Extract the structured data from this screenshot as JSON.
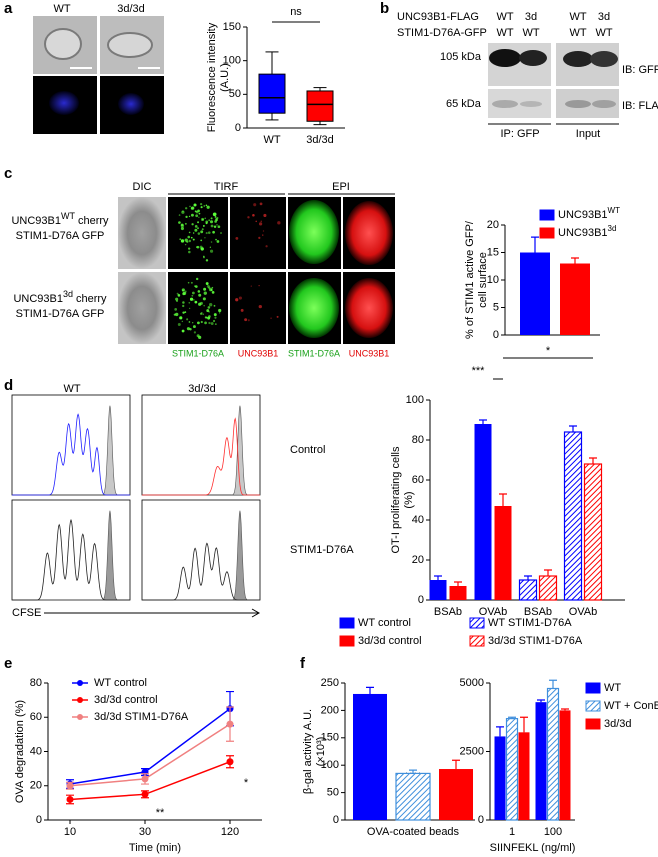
{
  "figure": {
    "panel_labels": [
      "a",
      "b",
      "c",
      "d",
      "e",
      "f"
    ],
    "a": {
      "image_labels": [
        "WT",
        "3d/3d"
      ]
    },
    "b": {
      "row_labels": [
        "UNC93B1-FLAG",
        "STIM1-D76A-GFP"
      ],
      "columns": [
        [
          "WT",
          "WT"
        ],
        [
          "3d",
          "WT"
        ],
        [
          "WT",
          "WT"
        ],
        [
          "3d",
          "WT"
        ]
      ],
      "markers": [
        "105 kDa",
        "65 kDa"
      ],
      "blots": [
        "IB: GFP",
        "IB: FLAG"
      ],
      "groups": [
        "IP: GFP",
        "Input"
      ]
    },
    "c": {
      "headers": [
        "DIC",
        "TIRF",
        "EPI"
      ],
      "rows": [
        {
          "line1": [
            "UNC93B1",
            "WT",
            "cherry"
          ],
          "line2": "STIM1-D76A GFP"
        },
        {
          "line1": [
            "UNC93B1",
            "3d",
            "cherry"
          ],
          "line2": "STIM1-D76A GFP"
        }
      ],
      "channels": [
        "STIM1-D76A",
        "UNC93B1",
        "STIM1-D76A",
        "UNC93B1"
      ]
    },
    "d": {
      "columns": [
        "WT",
        "3d/3d"
      ],
      "rows": [
        "Control",
        "STIM1-D76A"
      ],
      "axis": "CFSE"
    }
  },
  "chart_data": [
    {
      "type": "box",
      "ylabel": [
        "Fluorescence intensity",
        "(A.U.)"
      ],
      "categories": [
        "WT",
        "3d/3d"
      ],
      "boxes": [
        {
          "min": 12,
          "q1": 22,
          "median": 45,
          "q3": 80,
          "max": 113,
          "color": "#0000ff"
        },
        {
          "min": 5,
          "q1": 10,
          "median": 35,
          "q3": 55,
          "max": 60,
          "color": "#ff0000"
        }
      ],
      "ylim": [
        0,
        150
      ],
      "yticks": [
        0,
        50,
        100,
        150
      ],
      "annotations": [
        "ns"
      ]
    },
    {
      "type": "bar",
      "ylabel": [
        "% of STIM1 active GFP/",
        "cell surface"
      ],
      "series": [
        {
          "name": "UNC93B1",
          "name_superscript": "WT",
          "color": "#0000ff",
          "values": [
            15
          ],
          "errors": [
            2.8
          ]
        },
        {
          "name": "UNC93B1",
          "name_superscript": "3d",
          "color": "#ff0000",
          "values": [
            13
          ],
          "errors": [
            1
          ]
        }
      ],
      "ylim": [
        0,
        20
      ],
      "yticks": [
        0,
        5,
        10,
        15,
        20
      ]
    },
    {
      "type": "bar",
      "ylabel": [
        "OT-I proliferating cells",
        "(%)"
      ],
      "categories": [
        "BSAb",
        "OVAb",
        "BSAb",
        "OVAb"
      ],
      "series": [
        {
          "name": "WT control",
          "color": "#0000ff",
          "values": [
            10,
            88,
            null,
            null
          ],
          "errors": [
            2,
            2,
            null,
            null
          ]
        },
        {
          "name": "3d/3d control",
          "color": "#ff0000",
          "values": [
            7,
            47,
            null,
            null
          ],
          "errors": [
            2,
            6,
            null,
            null
          ]
        },
        {
          "name": "WT STIM1-D76A",
          "color": "#0000ff",
          "hatch": true,
          "values": [
            null,
            null,
            10,
            84
          ],
          "errors": [
            null,
            null,
            2,
            3
          ]
        },
        {
          "name": "3d/3d STIM1-D76A",
          "color": "#ff0000",
          "hatch": true,
          "values": [
            null,
            null,
            12,
            68
          ],
          "errors": [
            null,
            null,
            3,
            3
          ]
        }
      ],
      "ylim": [
        0,
        100
      ],
      "yticks": [
        0,
        20,
        40,
        60,
        80,
        100
      ],
      "annotations": [
        "***",
        "*"
      ]
    },
    {
      "type": "line",
      "ylabel": [
        "OVA degradation (%)"
      ],
      "xlabel": "Time (min)",
      "categories": [
        "10",
        "30",
        "120"
      ],
      "series": [
        {
          "name": "WT control",
          "color": "#0000ff",
          "values": [
            21,
            28,
            65
          ],
          "errors": [
            2.5,
            2,
            10
          ]
        },
        {
          "name": "3d/3d control",
          "color": "#ff0000",
          "values": [
            12,
            15,
            34
          ],
          "errors": [
            2.5,
            2,
            3.5
          ]
        },
        {
          "name": "3d/3d STIM1-D76A",
          "color": "#f08080",
          "values": [
            20,
            24,
            56
          ],
          "errors": [
            2,
            3,
            10
          ]
        }
      ],
      "ylim": [
        0,
        80
      ],
      "yticks": [
        0,
        20,
        40,
        60,
        80
      ],
      "annotations": [
        "**",
        "*"
      ]
    },
    {
      "type": "bar",
      "ylabel": [
        "β-gal activity A.U.",
        "(×10³)"
      ],
      "categories": [
        "OVA-coated beads"
      ],
      "series": [
        {
          "color": "#0000ff",
          "values": [
            230
          ],
          "errors": [
            12
          ]
        },
        {
          "color": "#3f8fdc",
          "hatch": true,
          "values": [
            85
          ],
          "errors": [
            6
          ]
        },
        {
          "color": "#ff0000",
          "values": [
            93
          ],
          "errors": [
            16
          ]
        }
      ],
      "ylim": [
        0,
        250
      ],
      "yticks": [
        0,
        50,
        100,
        150,
        200,
        250
      ],
      "annotations": [
        "****",
        "***"
      ]
    },
    {
      "type": "bar",
      "xlabel": "SIINFEKL (ng/ml)",
      "categories": [
        "1",
        "100"
      ],
      "series": [
        {
          "name": "WT",
          "color": "#0000ff",
          "values": [
            3050,
            4300
          ],
          "errors": [
            350,
            80
          ]
        },
        {
          "name": "WT + ConB",
          "color": "#3f8fdc",
          "hatch": true,
          "values": [
            3700,
            4800
          ],
          "errors": [
            50,
            300
          ]
        },
        {
          "name": "3d/3d",
          "color": "#ff0000",
          "values": [
            3200,
            4000
          ],
          "errors": [
            550,
            50
          ]
        }
      ],
      "ylim": [
        0,
        5000
      ],
      "yticks": [
        0,
        2500,
        5000
      ]
    }
  ]
}
